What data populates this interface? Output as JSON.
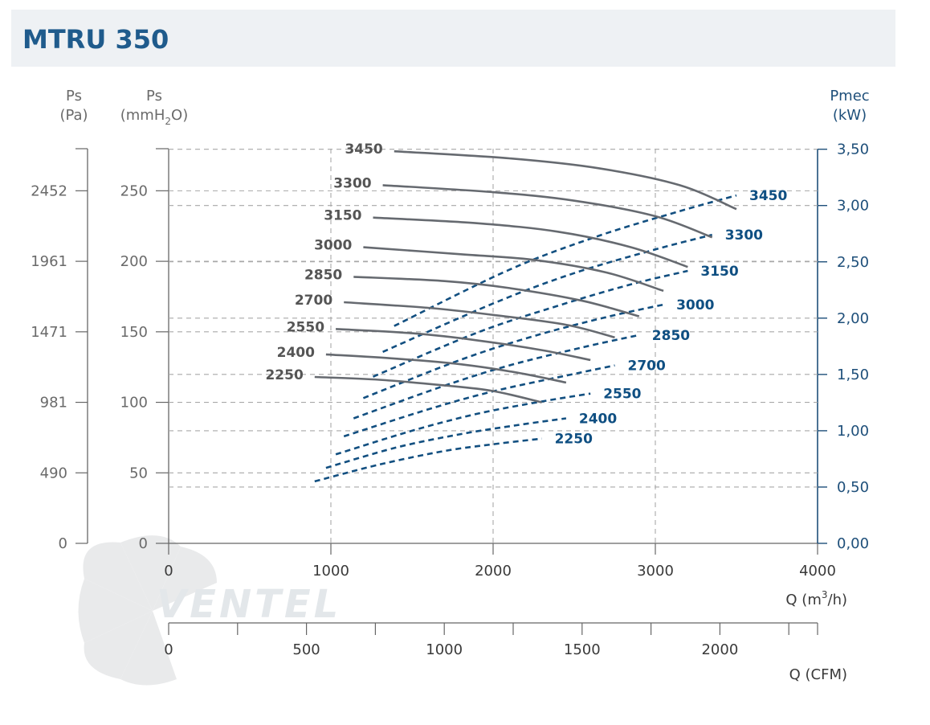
{
  "title": "MTRU 350",
  "colors": {
    "pressure_curve": "#666a70",
    "power_curve": "#124f80",
    "grid": "#a8a8a8",
    "title": "#1f5b8c",
    "axis_right": "#1e4f7a"
  },
  "watermark": "VENTEL",
  "axes": {
    "pa": {
      "label_top": "Ps",
      "label_unit": "(Pa)",
      "ticks": [
        "0",
        "490",
        "981",
        "1471",
        "1961",
        "2452"
      ]
    },
    "mmh2o": {
      "label_top": "Ps",
      "label_unit_a": "(mmH",
      "label_unit_sub": "2",
      "label_unit_b": "O)",
      "ticks": [
        "0",
        "50",
        "100",
        "150",
        "200",
        "250"
      ]
    },
    "kw": {
      "label_top": "Pmec",
      "label_unit": "(kW)",
      "ticks": [
        "0,00",
        "0,50",
        "1,00",
        "1,50",
        "2,00",
        "2,50",
        "3,00",
        "3,50"
      ]
    },
    "m3h": {
      "label_a": "Q (m",
      "label_sup": "3",
      "label_b": "/h)",
      "ticks": [
        "0",
        "1000",
        "2000",
        "3000",
        "4000"
      ]
    },
    "cfm": {
      "label": "Q (CFM)",
      "ticks": [
        "0",
        "500",
        "1000",
        "1500",
        "2000"
      ]
    }
  },
  "chart_data": {
    "type": "line",
    "title": "MTRU 350",
    "xlabel": "Q (m3/h)",
    "secondary_xlabel": "Q (CFM)",
    "ylabel": "Ps (mmH2O)",
    "y2label": "Pmec (kW)",
    "xlim": [
      0,
      4000
    ],
    "ylim": [
      0,
      280
    ],
    "y2lim": [
      0,
      3.5
    ],
    "grid": true,
    "pressure_series": [
      {
        "name": "2250",
        "x": [
          900,
          1300,
          1700,
          2000,
          2300
        ],
        "y": [
          118,
          116,
          112,
          108,
          100
        ]
      },
      {
        "name": "2400",
        "x": [
          970,
          1400,
          1800,
          2150,
          2450
        ],
        "y": [
          134,
          131,
          127,
          121,
          114
        ]
      },
      {
        "name": "2550",
        "x": [
          1030,
          1500,
          1900,
          2300,
          2600
        ],
        "y": [
          152,
          149,
          144,
          137,
          130
        ]
      },
      {
        "name": "2700",
        "x": [
          1080,
          1600,
          2000,
          2450,
          2750
        ],
        "y": [
          171,
          167,
          162,
          155,
          146
        ]
      },
      {
        "name": "2850",
        "x": [
          1140,
          1700,
          2100,
          2550,
          2900
        ],
        "y": [
          189,
          186,
          181,
          172,
          161
        ]
      },
      {
        "name": "3000",
        "x": [
          1200,
          1800,
          2250,
          2700,
          3050
        ],
        "y": [
          210,
          205,
          201,
          192,
          179
        ]
      },
      {
        "name": "3150",
        "x": [
          1260,
          1900,
          2400,
          2850,
          3200
        ],
        "y": [
          231,
          227,
          221,
          210,
          196
        ]
      },
      {
        "name": "3300",
        "x": [
          1320,
          2000,
          2500,
          3000,
          3350
        ],
        "y": [
          254,
          249,
          243,
          232,
          217
        ]
      },
      {
        "name": "3450",
        "x": [
          1390,
          2100,
          2650,
          3150,
          3500
        ],
        "y": [
          278,
          273,
          266,
          254,
          237
        ]
      }
    ],
    "power_series": [
      {
        "name": "2250",
        "x": [
          900,
          1300,
          1700,
          2000,
          2300
        ],
        "y": [
          0.55,
          0.7,
          0.82,
          0.88,
          0.93
        ]
      },
      {
        "name": "2400",
        "x": [
          970,
          1400,
          1800,
          2150,
          2450
        ],
        "y": [
          0.67,
          0.85,
          0.97,
          1.05,
          1.11
        ]
      },
      {
        "name": "2550",
        "x": [
          1030,
          1500,
          1900,
          2300,
          2600
        ],
        "y": [
          0.79,
          1.0,
          1.15,
          1.26,
          1.33
        ]
      },
      {
        "name": "2700",
        "x": [
          1080,
          1600,
          2000,
          2450,
          2750
        ],
        "y": [
          0.95,
          1.19,
          1.35,
          1.49,
          1.58
        ]
      },
      {
        "name": "2850",
        "x": [
          1140,
          1700,
          2100,
          2550,
          2900
        ],
        "y": [
          1.11,
          1.4,
          1.58,
          1.74,
          1.85
        ]
      },
      {
        "name": "3000",
        "x": [
          1200,
          1800,
          2250,
          2700,
          3050
        ],
        "y": [
          1.29,
          1.63,
          1.84,
          2.01,
          2.12
        ]
      },
      {
        "name": "3150",
        "x": [
          1260,
          1900,
          2400,
          2850,
          3200
        ],
        "y": [
          1.48,
          1.87,
          2.11,
          2.3,
          2.42
        ]
      },
      {
        "name": "3300",
        "x": [
          1320,
          2000,
          2500,
          3000,
          3350
        ],
        "y": [
          1.7,
          2.13,
          2.4,
          2.61,
          2.74
        ]
      },
      {
        "name": "3450",
        "x": [
          1390,
          2100,
          2650,
          3150,
          3500
        ],
        "y": [
          1.93,
          2.43,
          2.73,
          2.95,
          3.09
        ]
      }
    ]
  }
}
